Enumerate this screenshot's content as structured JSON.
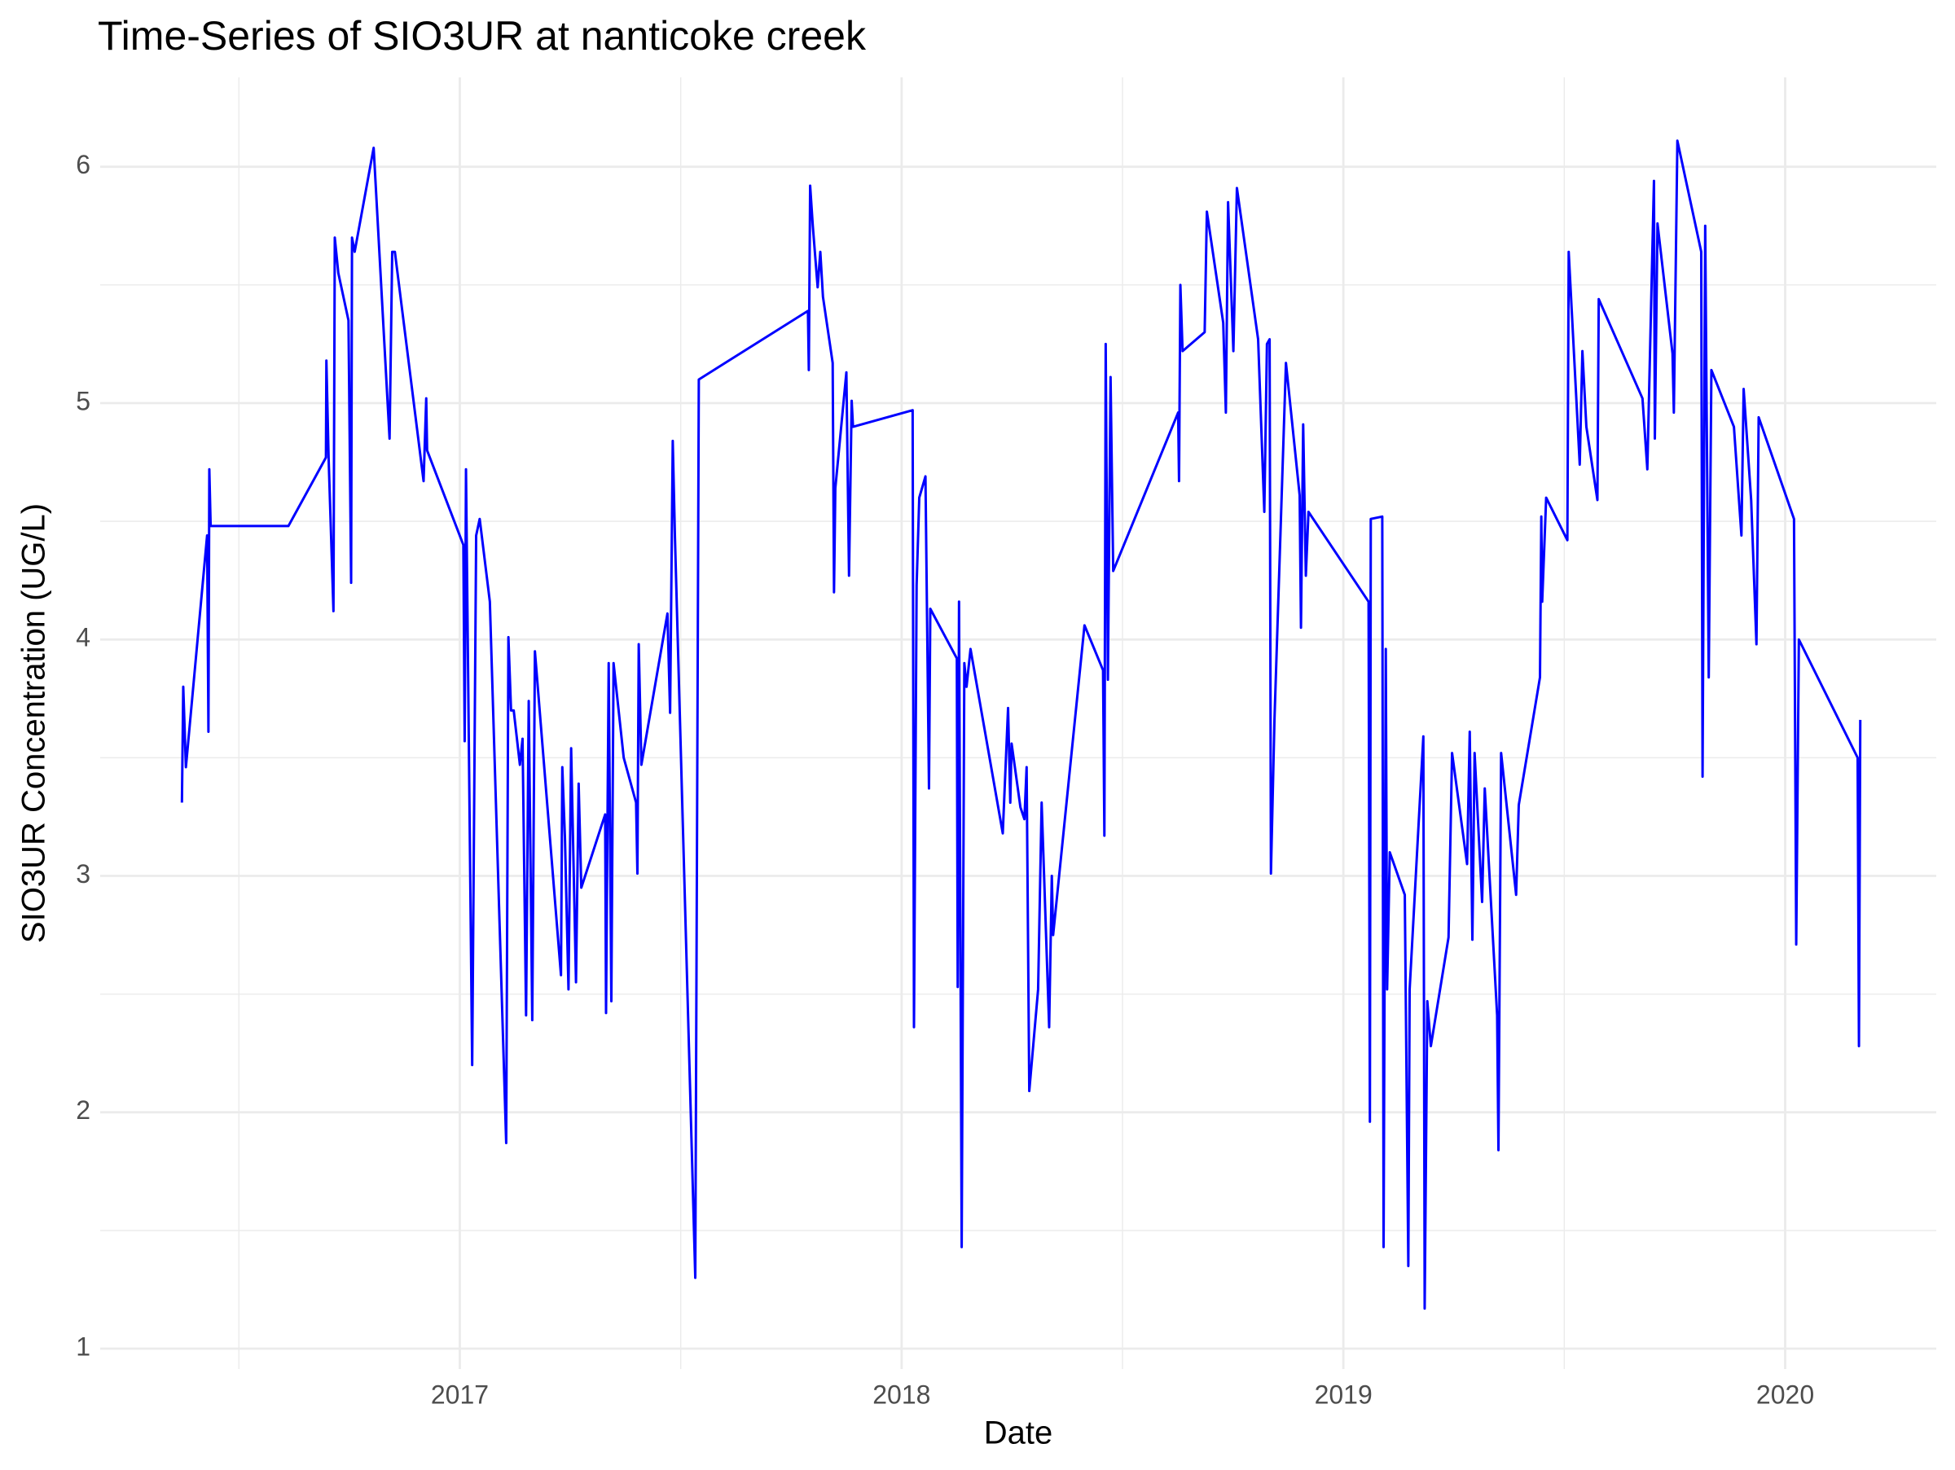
{
  "chart_data": {
    "type": "line",
    "title": "Time-Series of SIO3UR at nanticoke creek",
    "x_label": "Date",
    "y_label": "SIO3UR Concentration (UG/L)",
    "color": "#0000ff",
    "grid": true,
    "xlim": [
      2016.186,
      2020.342
    ],
    "xticks": [
      2017,
      2018,
      2019,
      2020
    ],
    "ylim": [
      0.914,
      6.378
    ],
    "yticks": [
      1,
      2,
      3,
      4,
      5,
      6
    ],
    "x": [
      2016.371,
      2016.374,
      2016.38,
      2016.428,
      2016.431,
      2016.433,
      2016.436,
      2016.612,
      2016.697,
      2016.698,
      2016.703,
      2016.714,
      2016.717,
      2016.725,
      2016.748,
      2016.754,
      2016.756,
      2016.762,
      2016.805,
      2016.841,
      2016.847,
      2016.853,
      2016.918,
      2016.924,
      2016.926,
      2017.008,
      2017.011,
      2017.014,
      2017.028,
      2017.031,
      2017.037,
      2017.045,
      2017.068,
      2017.105,
      2017.11,
      2017.116,
      2017.122,
      2017.136,
      2017.142,
      2017.15,
      2017.156,
      2017.164,
      2017.17,
      2017.229,
      2017.232,
      2017.238,
      2017.246,
      2017.252,
      2017.263,
      2017.269,
      2017.275,
      2017.329,
      2017.331,
      2017.337,
      2017.343,
      2017.348,
      2017.371,
      2017.399,
      2017.402,
      2017.405,
      2017.411,
      2017.47,
      2017.476,
      2017.482,
      2017.487,
      2017.533,
      2017.541,
      2017.788,
      2017.79,
      2017.793,
      2017.799,
      2017.81,
      2017.816,
      2017.822,
      2017.844,
      2017.847,
      2017.85,
      2017.875,
      2017.881,
      2017.887,
      2017.89,
      2018.025,
      2018.028,
      2018.034,
      2018.04,
      2018.054,
      2018.062,
      2018.065,
      2018.125,
      2018.127,
      2018.13,
      2018.136,
      2018.142,
      2018.147,
      2018.156,
      2018.229,
      2018.241,
      2018.246,
      2018.249,
      2018.269,
      2018.278,
      2018.283,
      2018.289,
      2018.309,
      2018.317,
      2018.334,
      2018.34,
      2018.343,
      2018.414,
      2018.456,
      2018.459,
      2018.462,
      2018.467,
      2018.473,
      2018.479,
      2018.626,
      2018.628,
      2018.631,
      2018.636,
      2018.686,
      2018.691,
      2018.728,
      2018.734,
      2018.739,
      2018.751,
      2018.759,
      2018.807,
      2018.821,
      2018.827,
      2018.833,
      2018.836,
      2018.844,
      2018.87,
      2018.901,
      2018.904,
      2018.909,
      2018.915,
      2018.921,
      2019.057,
      2019.06,
      2019.062,
      2019.088,
      2019.091,
      2019.096,
      2019.099,
      2019.105,
      2019.139,
      2019.147,
      2019.15,
      2019.181,
      2019.184,
      2019.19,
      2019.198,
      2019.238,
      2019.246,
      2019.28,
      2019.286,
      2019.292,
      2019.297,
      2019.314,
      2019.32,
      2019.348,
      2019.351,
      2019.357,
      2019.391,
      2019.397,
      2019.445,
      2019.448,
      2019.45,
      2019.459,
      2019.507,
      2019.51,
      2019.535,
      2019.541,
      2019.55,
      2019.575,
      2019.578,
      2019.677,
      2019.688,
      2019.703,
      2019.705,
      2019.711,
      2019.745,
      2019.748,
      2019.756,
      2019.81,
      2019.813,
      2019.819,
      2019.827,
      2019.833,
      2019.884,
      2019.901,
      2019.906,
      2019.923,
      2019.935,
      2019.94,
      2020.02,
      2020.025,
      2020.031,
      2020.164,
      2020.167,
      2020.17
    ],
    "values": [
      3.31,
      3.8,
      3.46,
      4.44,
      3.61,
      4.72,
      4.48,
      4.48,
      4.77,
      5.18,
      4.77,
      4.12,
      5.7,
      5.55,
      5.35,
      4.24,
      5.7,
      5.64,
      6.08,
      4.85,
      5.64,
      5.64,
      4.67,
      5.02,
      4.8,
      4.4,
      3.57,
      4.72,
      2.2,
      2.93,
      4.44,
      4.51,
      4.16,
      1.87,
      4.01,
      3.7,
      3.7,
      3.47,
      3.58,
      2.41,
      3.74,
      2.39,
      3.95,
      2.58,
      3.46,
      3.16,
      2.52,
      3.54,
      2.55,
      3.39,
      2.95,
      3.26,
      2.42,
      3.9,
      2.47,
      3.9,
      3.5,
      3.31,
      3.01,
      3.98,
      3.47,
      4.11,
      3.69,
      4.84,
      4.43,
      1.3,
      5.1,
      5.39,
      5.14,
      5.92,
      5.75,
      5.49,
      5.64,
      5.45,
      5.17,
      4.2,
      4.64,
      5.13,
      4.27,
      5.01,
      4.9,
      4.97,
      2.36,
      4.23,
      4.6,
      4.69,
      3.37,
      4.13,
      3.92,
      2.53,
      4.16,
      1.43,
      3.9,
      3.8,
      3.96,
      3.18,
      3.71,
      3.31,
      3.56,
      3.29,
      3.24,
      3.46,
      2.09,
      2.52,
      3.31,
      2.36,
      3.0,
      2.75,
      4.06,
      3.87,
      3.17,
      5.25,
      3.83,
      5.11,
      4.29,
      4.96,
      4.67,
      5.5,
      5.22,
      5.3,
      5.81,
      5.34,
      4.96,
      5.85,
      5.22,
      5.91,
      5.27,
      4.54,
      5.25,
      5.27,
      3.01,
      3.66,
      5.17,
      4.61,
      4.05,
      4.91,
      4.27,
      4.54,
      4.16,
      1.96,
      4.51,
      4.52,
      1.43,
      3.96,
      2.52,
      3.1,
      2.92,
      1.35,
      2.52,
      3.59,
      1.17,
      2.47,
      2.28,
      2.74,
      3.52,
      3.05,
      3.61,
      2.73,
      3.52,
      2.89,
      3.37,
      2.41,
      1.84,
      3.52,
      2.92,
      3.3,
      3.84,
      4.52,
      4.16,
      4.6,
      4.42,
      5.64,
      4.74,
      5.22,
      4.9,
      4.59,
      5.44,
      5.02,
      4.72,
      5.94,
      4.85,
      5.76,
      5.21,
      4.96,
      6.11,
      5.64,
      3.42,
      5.75,
      3.84,
      5.14,
      4.9,
      4.44,
      5.06,
      4.59,
      3.98,
      4.94,
      4.51,
      2.71,
      4.0,
      3.5,
      2.28,
      3.66
    ]
  }
}
